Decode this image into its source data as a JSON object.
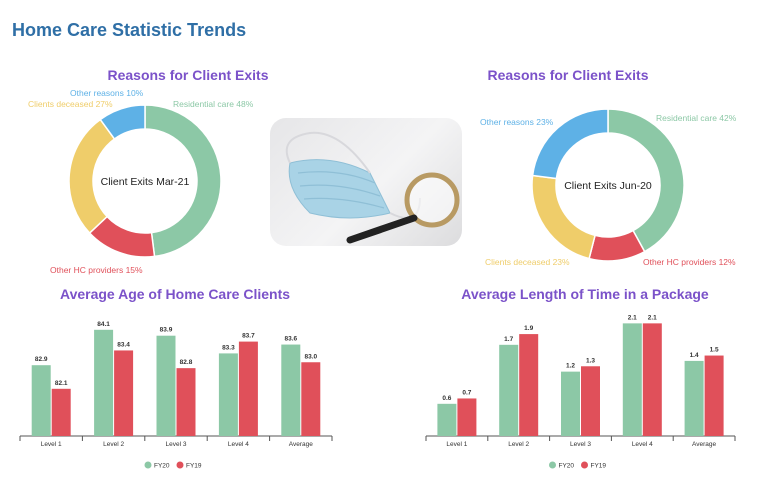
{
  "page": {
    "title": "Home Care Statistic Trends"
  },
  "colors": {
    "title": "#2f6fa6",
    "chart_title": "#7b52c9",
    "green": "#8cc8a6",
    "red": "#e0505a",
    "yellow": "#efcd6a",
    "blue": "#5eb1e6",
    "axis": "#555555"
  },
  "photo": {
    "alt": "surgical mask and magnifying glass"
  },
  "chart_data": [
    {
      "type": "pie",
      "title": "Reasons for Client Exits",
      "center_label": "Client Exits Mar-21",
      "slices": [
        {
          "label": "Residential care 48%",
          "value": 48,
          "color": "#8cc8a6"
        },
        {
          "label": "Other HC providers 15%",
          "value": 15,
          "color": "#e0505a"
        },
        {
          "label": "Clients deceased 27%",
          "value": 27,
          "color": "#efcd6a"
        },
        {
          "label": "Other reasons 10%",
          "value": 10,
          "color": "#5eb1e6"
        }
      ]
    },
    {
      "type": "pie",
      "title": "Reasons for Client Exits",
      "center_label": "Client Exits Jun-20",
      "slices": [
        {
          "label": "Residential care 42%",
          "value": 42,
          "color": "#8cc8a6"
        },
        {
          "label": "Other HC providers 12%",
          "value": 12,
          "color": "#e0505a"
        },
        {
          "label": "Clients deceased 23%",
          "value": 23,
          "color": "#efcd6a"
        },
        {
          "label": "Other reasons 23%",
          "value": 23,
          "color": "#5eb1e6"
        }
      ]
    },
    {
      "type": "bar",
      "title": "Average Age of Home Care Clients",
      "categories": [
        "Level 1",
        "Level 2",
        "Level 3",
        "Level 4",
        "Average"
      ],
      "series": [
        {
          "name": "FY20",
          "values": [
            82.9,
            84.1,
            83.9,
            83.3,
            83.6
          ],
          "labels": [
            "82.9",
            "84.1",
            "83.9",
            "83.3",
            "83.6"
          ],
          "color": "#8cc8a6"
        },
        {
          "name": "FY19",
          "values": [
            82.1,
            83.4,
            82.8,
            83.7,
            83.0
          ],
          "labels": [
            "82.1",
            "83.4",
            "82.8",
            "83.7",
            "83.0"
          ],
          "color": "#e0505a"
        }
      ],
      "ylim": [
        80.5,
        84.5
      ],
      "legend": "bottom"
    },
    {
      "type": "bar",
      "title": "Average Length of Time in a Package",
      "categories": [
        "Level 1",
        "Level 2",
        "Level 3",
        "Level 4",
        "Average"
      ],
      "series": [
        {
          "name": "FY20",
          "values": [
            0.6,
            1.7,
            1.2,
            2.1,
            1.4
          ],
          "labels": [
            "0.6",
            "1.7",
            "1.2",
            "2.1",
            "1.4"
          ],
          "color": "#8cc8a6"
        },
        {
          "name": "FY19",
          "values": [
            0.7,
            1.9,
            1.3,
            2.1,
            1.5
          ],
          "labels": [
            "0.7",
            "1.9",
            "1.3",
            "2.1",
            "1.5"
          ],
          "color": "#e0505a"
        }
      ],
      "ylim": [
        0,
        2.2
      ],
      "legend": "bottom"
    }
  ]
}
